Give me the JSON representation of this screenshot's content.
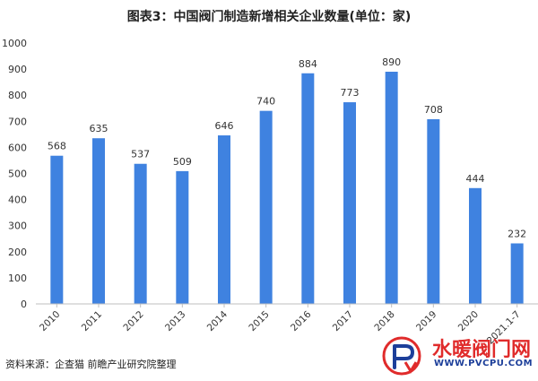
{
  "title": "图表3：中国阀门制造新增相关企业数量(单位：家)",
  "source": "资料来源：企查猫 前瞻产业研究院整理",
  "logo": {
    "name": "水暖阀门网",
    "url": "WWW.PVCPU.COM"
  },
  "colors": {
    "bar": "#3f82e0",
    "axis": "#bfbfbf",
    "text": "#333333"
  },
  "chart_data": {
    "type": "bar",
    "title": "图表3：中国阀门制造新增相关企业数量(单位：家)",
    "categories": [
      "2010",
      "2011",
      "2012",
      "2013",
      "2014",
      "2015",
      "2016",
      "2017",
      "2018",
      "2019",
      "2020",
      "2021.1-7"
    ],
    "values": [
      568,
      635,
      537,
      509,
      646,
      740,
      884,
      773,
      890,
      708,
      444,
      232
    ],
    "ylim": [
      0,
      1000
    ],
    "yticks": [
      0,
      100,
      200,
      300,
      400,
      500,
      600,
      700,
      800,
      900,
      1000
    ],
    "xlabel": "",
    "ylabel": "",
    "grid": false,
    "legend": "none"
  }
}
